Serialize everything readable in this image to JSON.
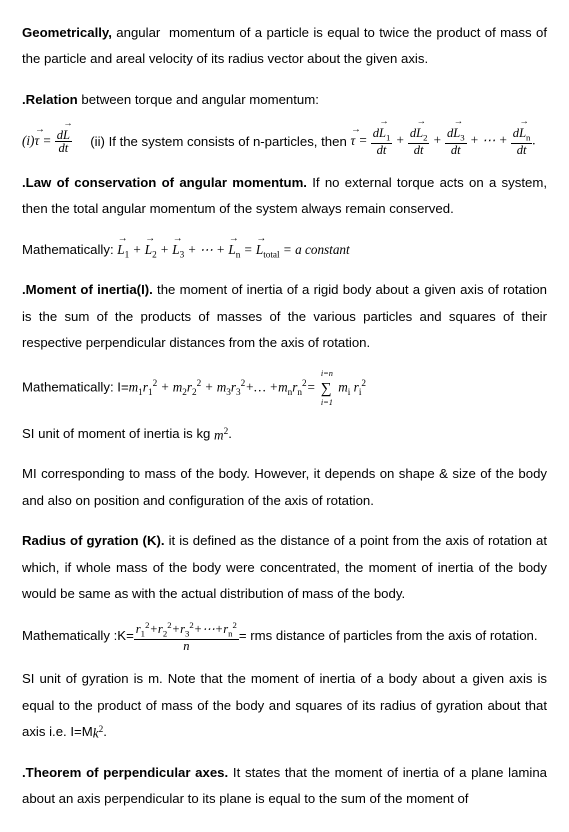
{
  "p1_bold": "Geometrically,",
  "p1_text": "angular  momentum of a particle is equal to twice the product of mass of the particle and areal velocity of its radius vector about the given axis.",
  "p2_bold": ".Relation",
  "p2_text": "between torque and angular momentum:",
  "eq1_label": "(i)",
  "eq1_tau": "τ",
  "eq1_eq": "=",
  "eq1_num": "dL",
  "eq1_den": "dt",
  "eq1_mid": "    (ii) If the system consists of n-particles, then ",
  "eq1_t2": "τ",
  "eq1_e2": "=",
  "eq1_n1": "dL",
  "eq1_s1": "1",
  "eq1_d": "dt",
  "eq1_plus": "+",
  "eq1_n2": "dL",
  "eq1_s2": "2",
  "eq1_n3": "dL",
  "eq1_s3": "3",
  "eq1_dots": "⋯ +",
  "eq1_nn": "dL",
  "eq1_sn": "n",
  "eq1_period": ".",
  "p3_bold": ".Law of conservation of angular momentum.",
  "p3_text": "If no external torque acts on a system, then the total angular momentum of the system always remain conserved.",
  "p4_pre": "Mathematically: ",
  "p4_L": "L",
  "p4_1": "1",
  "p4_2": "2",
  "p4_3": "3",
  "p4_n": "n",
  "p4_tot": "total",
  "p4_pl": " + ",
  "p4_dots": " + ⋯ + ",
  "p4_eq": " = ",
  "p4_const": "a constant",
  "p5_bold": ".Moment of inertia(I).",
  "p5_text": "the moment of inertia of a rigid body about a given axis of rotation is the sum of the products of masses of the various particles and squares of their respective perpendicular distances from the axis of rotation.",
  "p6_pre": "Mathematically: I=",
  "p6_m": "m",
  "p6_r": "r",
  "p6_1": "1",
  "p6_2": "2",
  "p6_3": "3",
  "p6_n": "n",
  "p6_i": "i",
  "p6_sq": "2",
  "p6_pl": " + ",
  "p6_dots": "+… +",
  "p6_eq": "= ",
  "p6_sum_top": "i=n",
  "p6_sum_bot": "i=1",
  "p7_text": "SI unit of moment of inertia is kg ",
  "p7_m2": "m",
  "p7_sq": "2",
  "p7_dot": ".",
  "p8_text": "MI corresponding to mass of the body. However, it depends on shape & size of the body and also on position and configuration of the axis of rotation.",
  "p9_bold": "Radius of gyration (K).",
  "p9_text": "it is defined as the distance of a point from the axis of rotation at which, if whole mass of the body were concentrated, the moment of inertia of the body would be same as with the actual distribution of mass of the body.",
  "p10_pre": "Mathematically :K=",
  "p10_r": "r",
  "p10_1": "1",
  "p10_2": "2",
  "p10_3": "3",
  "p10_n": "n",
  "p10_sq": "2",
  "p10_pl": "+",
  "p10_dots": "+⋯+",
  "p10_den": "n",
  "p10_post": "= rms distance of particles from the axis of rotation.",
  "p11_pre": "SI unit of gyration is m. Note that the moment of inertia of a body about a given axis is equal to the product of mass of the body and squares of its radius of gyration about that axis i.e. I=M",
  "p11_k": "k",
  "p11_sq": "2",
  "p11_dot": ".",
  "p12_bold": ".Theorem of perpendicular axes.",
  "p12_text": "It states that the moment of inertia of a plane lamina about an axis perpendicular to its plane is equal to the sum of the moment of"
}
